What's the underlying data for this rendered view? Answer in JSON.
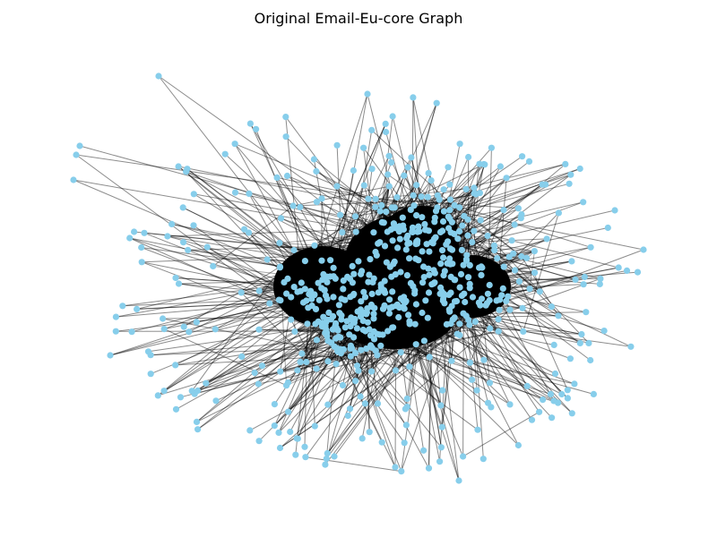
{
  "title": "Original Email-Eu-core Graph",
  "graph": {
    "name": "Email-Eu-core",
    "node_color": "#87CEEB",
    "edge_color": "#000000",
    "edge_alpha": 0.45,
    "layout": "force-directed",
    "core_color": "#000000"
  }
}
